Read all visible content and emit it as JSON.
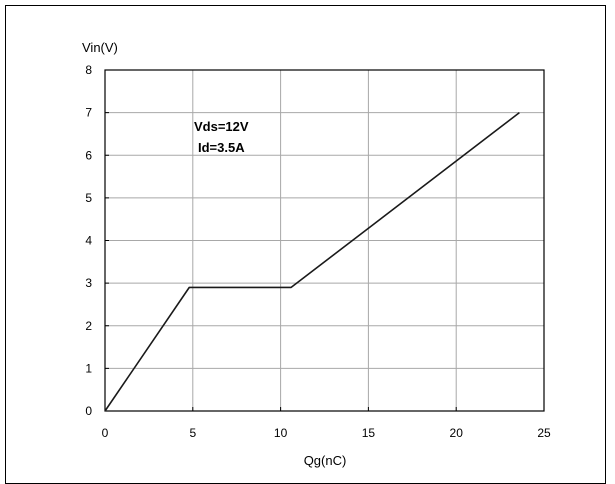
{
  "chart_data": {
    "type": "line",
    "title": "",
    "xlabel": "Qg(nC)",
    "ylabel": "Vin(V)",
    "xlim": [
      0,
      25
    ],
    "ylim": [
      0,
      8
    ],
    "xticks": [
      0,
      5,
      10,
      15,
      20,
      25
    ],
    "yticks": [
      0,
      1,
      2,
      3,
      4,
      5,
      6,
      7,
      8
    ],
    "grid": true,
    "annotations": [
      "Vds=12V",
      "Id=3.5A"
    ],
    "series": [
      {
        "x": [
          0,
          4.8,
          10.6,
          23.6
        ],
        "y": [
          0,
          2.9,
          2.9,
          7.0
        ]
      }
    ]
  },
  "colors": {
    "line": "#1a1a1a",
    "grid": "#a8a8a8",
    "axis": "#000000"
  }
}
